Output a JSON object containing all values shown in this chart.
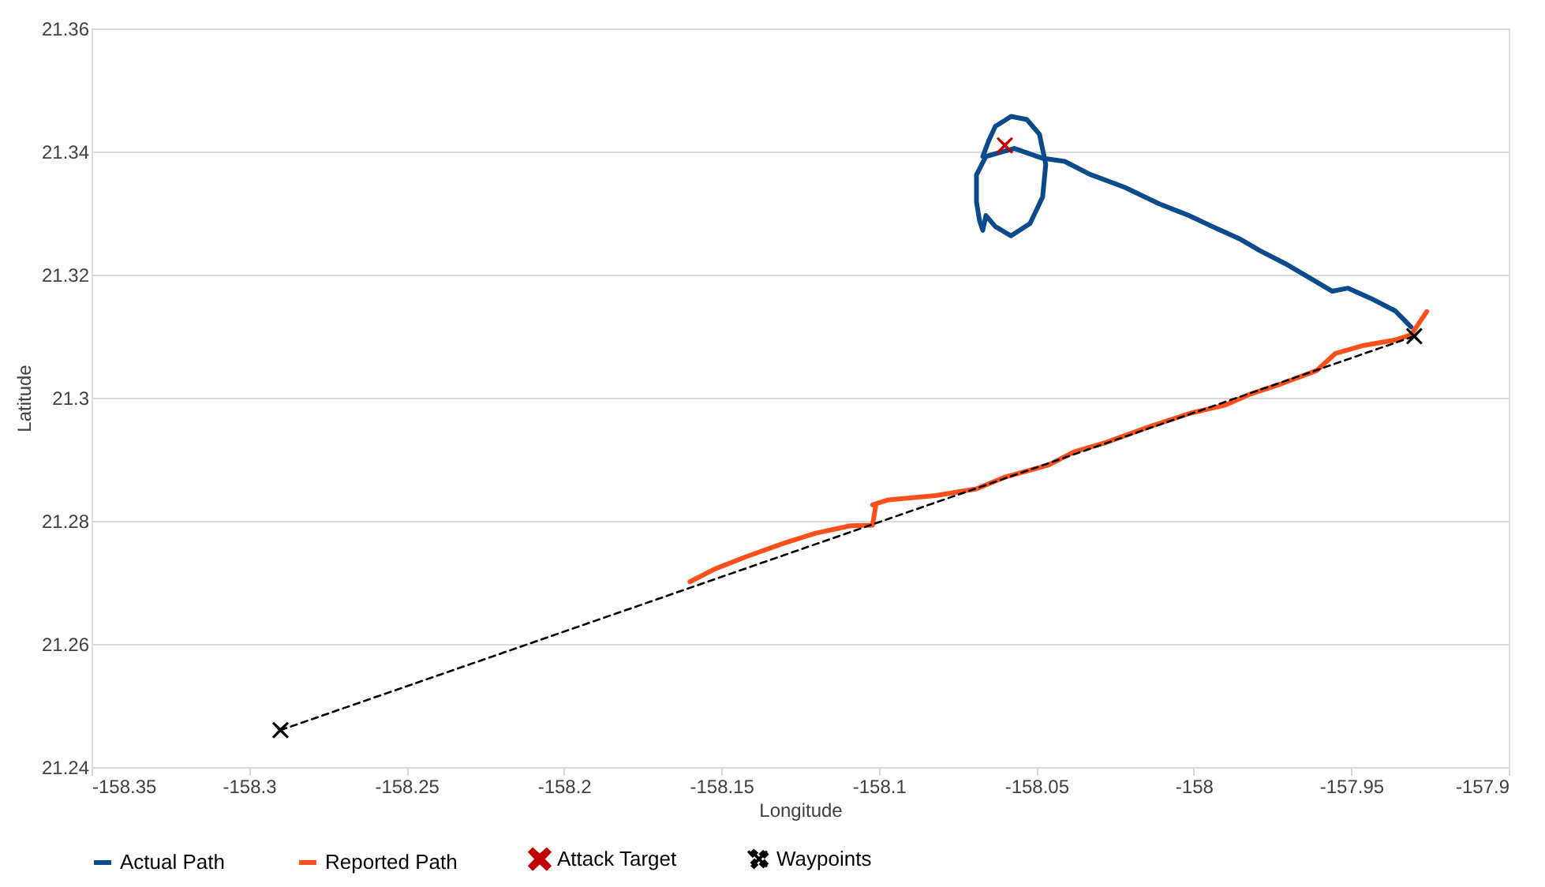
{
  "chart_data": {
    "type": "line",
    "xlabel": "Longitude",
    "ylabel": "Latitude",
    "xlim": [
      -158.35,
      -157.9
    ],
    "xticks": [
      -158.35,
      -158.3,
      -158.25,
      -158.2,
      -158.15,
      -158.1,
      -158.05,
      -158,
      -157.95,
      -157.9
    ],
    "ylim": [
      21.24,
      21.36
    ],
    "yticks": [
      21.24,
      21.26,
      21.28,
      21.3,
      21.32,
      21.34,
      21.36
    ],
    "grid": "y",
    "legend": "bottom",
    "series": [
      {
        "name": "Actual Path",
        "color": "#0b4a8b",
        "marker": "none",
        "line_style": "solid",
        "x": [
          -157.931,
          -157.936,
          -157.944,
          -157.951,
          -157.956,
          -157.963,
          -157.971,
          -157.979,
          -157.985,
          -157.994,
          -158.002,
          -158.011,
          -158.022,
          -158.033,
          -158.041,
          -158.048,
          -158.057,
          -158.066,
          -158.069,
          -158.069,
          -158.068,
          -158.067,
          -158.066,
          -158.063,
          -158.058,
          -158.052,
          -158.048,
          -158.047,
          -158.049,
          -158.053,
          -158.058,
          -158.063,
          -158.065,
          -158.067
        ],
        "values": [
          21.3115,
          21.3141,
          21.3162,
          21.3178,
          21.3173,
          21.3194,
          21.3218,
          21.3239,
          21.3257,
          21.3278,
          21.3297,
          21.3315,
          21.3342,
          21.3363,
          21.3384,
          21.3389,
          21.3405,
          21.3392,
          21.3362,
          21.3318,
          21.3287,
          21.3272,
          21.3296,
          21.3278,
          21.3263,
          21.3283,
          21.3326,
          21.3379,
          21.3428,
          21.3452,
          21.3457,
          21.3441,
          21.3419,
          21.3392
        ]
      },
      {
        "name": "Reported Path",
        "color": "#ff4f1a",
        "marker": "none",
        "line_style": "solid",
        "x": [
          -158.16,
          -158.152,
          -158.142,
          -158.13,
          -158.12,
          -158.109,
          -158.102,
          -158.101,
          -158.102,
          -158.097,
          -158.082,
          -158.069,
          -158.06,
          -158.046,
          -158.038,
          -158.028,
          -158.014,
          -158.001,
          -157.99,
          -157.982,
          -157.972,
          -157.961,
          -157.955,
          -157.946,
          -157.936,
          -157.931,
          -157.926
        ],
        "values": [
          21.2701,
          21.2722,
          21.2742,
          21.2764,
          21.278,
          21.2792,
          21.2793,
          21.2824,
          21.2826,
          21.2834,
          21.2841,
          21.2852,
          21.2871,
          21.2891,
          21.2912,
          21.2927,
          21.2953,
          21.2975,
          21.2988,
          21.3006,
          21.3023,
          21.3044,
          21.3072,
          21.3085,
          21.3094,
          21.3102,
          21.314
        ]
      },
      {
        "name": "Attack Target",
        "type": "scatter",
        "color": "#c00000",
        "marker": "cross",
        "x": [
          -158.06
        ],
        "values": [
          21.341
        ]
      },
      {
        "name": "Waypoints",
        "color": "#000000",
        "marker": "cross",
        "line_style": "dashed",
        "x": [
          -158.29,
          -157.93
        ],
        "values": [
          21.246,
          21.31
        ]
      }
    ]
  }
}
